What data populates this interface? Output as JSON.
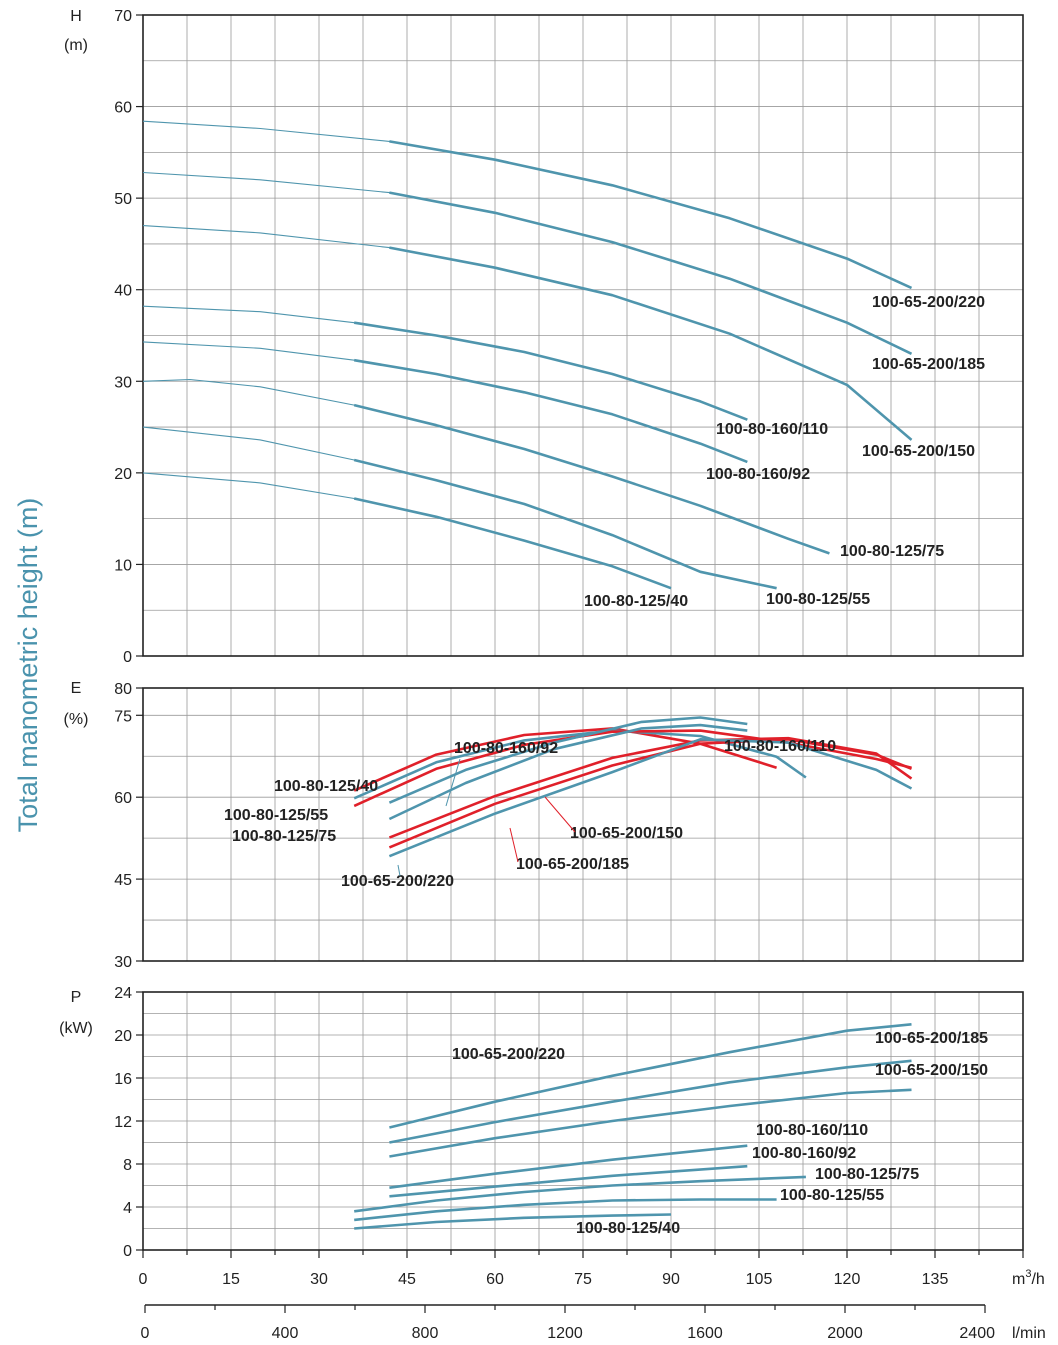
{
  "y_title": "Total manometric height (m)",
  "colors": {
    "blue": "#4f95ad",
    "red": "#e0202a",
    "grid": "#9a9a9a",
    "axis": "#222222"
  },
  "chart_data": [
    {
      "type": "line",
      "panel": "head",
      "ylabel": "H",
      "yunit": "(m)",
      "xlim": [
        0,
        150
      ],
      "ylim": [
        0,
        70
      ],
      "yticks": [
        "0",
        "10",
        "20",
        "30",
        "40",
        "50",
        "60",
        "70"
      ],
      "grid": true,
      "series": [
        {
          "name": "100-65-200/220",
          "color": "blue",
          "bold_from": 42,
          "points": [
            [
              0,
              58.4
            ],
            [
              20,
              57.6
            ],
            [
              42,
              56.2
            ],
            [
              60,
              54.2
            ],
            [
              80,
              51.4
            ],
            [
              100,
              47.8
            ],
            [
              120,
              43.4
            ],
            [
              131,
              40.2
            ]
          ]
        },
        {
          "name": "100-65-200/185",
          "color": "blue",
          "bold_from": 42,
          "points": [
            [
              0,
              52.8
            ],
            [
              20,
              52.0
            ],
            [
              42,
              50.6
            ],
            [
              60,
              48.4
            ],
            [
              80,
              45.2
            ],
            [
              100,
              41.2
            ],
            [
              120,
              36.4
            ],
            [
              131,
              33.0
            ]
          ]
        },
        {
          "name": "100-65-200/150",
          "color": "blue",
          "bold_from": 42,
          "points": [
            [
              0,
              47.0
            ],
            [
              20,
              46.2
            ],
            [
              42,
              44.6
            ],
            [
              60,
              42.4
            ],
            [
              80,
              39.4
            ],
            [
              100,
              35.2
            ],
            [
              120,
              29.6
            ],
            [
              131,
              23.6
            ]
          ]
        },
        {
          "name": "100-80-160/110",
          "color": "blue",
          "bold_from": 36,
          "points": [
            [
              0,
              38.2
            ],
            [
              20,
              37.6
            ],
            [
              36,
              36.4
            ],
            [
              50,
              35.0
            ],
            [
              65,
              33.2
            ],
            [
              80,
              30.8
            ],
            [
              95,
              27.8
            ],
            [
              103,
              25.8
            ]
          ]
        },
        {
          "name": "100-80-160/92",
          "color": "blue",
          "bold_from": 36,
          "points": [
            [
              0,
              34.3
            ],
            [
              20,
              33.6
            ],
            [
              36,
              32.3
            ],
            [
              50,
              30.8
            ],
            [
              65,
              28.8
            ],
            [
              80,
              26.4
            ],
            [
              95,
              23.2
            ],
            [
              103,
              21.2
            ]
          ]
        },
        {
          "name": "100-80-125/75",
          "color": "blue",
          "bold_from": 36,
          "points": [
            [
              0,
              30.0
            ],
            [
              8,
              30.2
            ],
            [
              20,
              29.4
            ],
            [
              36,
              27.4
            ],
            [
              50,
              25.2
            ],
            [
              65,
              22.6
            ],
            [
              80,
              19.6
            ],
            [
              95,
              16.4
            ],
            [
              110,
              12.8
            ],
            [
              117,
              11.2
            ]
          ]
        },
        {
          "name": "100-80-125/55",
          "color": "blue",
          "bold_from": 36,
          "points": [
            [
              0,
              25.0
            ],
            [
              20,
              23.6
            ],
            [
              36,
              21.4
            ],
            [
              50,
              19.2
            ],
            [
              65,
              16.6
            ],
            [
              80,
              13.2
            ],
            [
              95,
              9.2
            ],
            [
              108,
              7.4
            ]
          ]
        },
        {
          "name": "100-80-125/40",
          "color": "blue",
          "bold_from": 36,
          "points": [
            [
              0,
              20.0
            ],
            [
              20,
              18.9
            ],
            [
              36,
              17.2
            ],
            [
              50,
              15.2
            ],
            [
              65,
              12.6
            ],
            [
              80,
              9.8
            ],
            [
              90,
              7.4
            ]
          ]
        }
      ],
      "labels": [
        "100-65-200/220",
        "100-65-200/185",
        "100-65-200/150",
        "100-80-160/110",
        "100-80-160/92",
        "100-80-125/75",
        "100-80-125/55",
        "100-80-125/40"
      ]
    },
    {
      "type": "line",
      "panel": "efficiency",
      "ylabel": "E",
      "yunit": "(%)",
      "xlim": [
        0,
        150
      ],
      "ylim": [
        30,
        80
      ],
      "yticks": [
        "30",
        "45",
        "60",
        "75",
        "80"
      ],
      "grid": true,
      "series": [
        {
          "name": "100-80-125/40",
          "color": "red",
          "points": [
            [
              36,
              61.2
            ],
            [
              50,
              67.8
            ],
            [
              65,
              71.4
            ],
            [
              80,
              72.6
            ],
            [
              95,
              69.8
            ],
            [
              108,
              65.4
            ]
          ]
        },
        {
          "name": "100-80-125/55",
          "color": "blue",
          "points": [
            [
              36,
              59.8
            ],
            [
              50,
              66.4
            ],
            [
              65,
              70.4
            ],
            [
              80,
              72.2
            ],
            [
              95,
              71.2
            ],
            [
              108,
              67.4
            ],
            [
              113,
              63.6
            ]
          ]
        },
        {
          "name": "100-80-125/75",
          "color": "red",
          "points": [
            [
              36,
              58.4
            ],
            [
              50,
              65.2
            ],
            [
              65,
              69.6
            ],
            [
              80,
              72.0
            ],
            [
              95,
              72.2
            ],
            [
              110,
              70.0
            ],
            [
              125,
              67.0
            ],
            [
              131,
              65.4
            ]
          ]
        },
        {
          "name": "100-80-160/92",
          "color": "blue",
          "points": [
            [
              42,
              56.0
            ],
            [
              55,
              62.6
            ],
            [
              70,
              68.8
            ],
            [
              85,
              72.6
            ],
            [
              95,
              73.2
            ],
            [
              103,
              72.2
            ]
          ]
        },
        {
          "name": "100-80-160/110",
          "color": "blue",
          "points": [
            [
              42,
              59.0
            ],
            [
              55,
              65.0
            ],
            [
              70,
              70.0
            ],
            [
              85,
              73.8
            ],
            [
              95,
              74.6
            ],
            [
              103,
              73.4
            ]
          ]
        },
        {
          "name": "100-65-200/150",
          "color": "red",
          "points": [
            [
              42,
              52.6
            ],
            [
              60,
              60.2
            ],
            [
              80,
              67.2
            ],
            [
              95,
              70.4
            ],
            [
              110,
              70.8
            ],
            [
              125,
              68.0
            ],
            [
              131,
              63.4
            ]
          ]
        },
        {
          "name": "100-65-200/185",
          "color": "red",
          "points": [
            [
              42,
              50.8
            ],
            [
              60,
              58.8
            ],
            [
              80,
              65.8
            ],
            [
              95,
              69.8
            ],
            [
              110,
              70.6
            ],
            [
              125,
              67.8
            ],
            [
              131,
              65.2
            ]
          ]
        },
        {
          "name": "100-65-200/220",
          "color": "blue",
          "points": [
            [
              42,
              49.2
            ],
            [
              60,
              57.0
            ],
            [
              80,
              64.6
            ],
            [
              95,
              70.6
            ],
            [
              110,
              70.0
            ],
            [
              125,
              65.0
            ],
            [
              131,
              61.6
            ]
          ]
        }
      ],
      "labels": [
        "100-80-160/92",
        "100-80-160/110",
        "100-80-125/40",
        "100-80-125/55",
        "100-80-125/75",
        "100-65-200/150",
        "100-65-200/185",
        "100-65-200/220"
      ]
    },
    {
      "type": "line",
      "panel": "power",
      "ylabel": "P",
      "yunit": "(kW)",
      "xlim": [
        0,
        150
      ],
      "ylim": [
        0,
        24
      ],
      "yticks": [
        "0",
        "4",
        "8",
        "12",
        "16",
        "20",
        "24"
      ],
      "grid": true,
      "series": [
        {
          "name": "100-65-200/220",
          "color": "blue",
          "points": [
            [
              42,
              11.4
            ],
            [
              60,
              13.8
            ],
            [
              80,
              16.2
            ],
            [
              100,
              18.4
            ],
            [
              120,
              20.4
            ],
            [
              131,
              21.0
            ]
          ]
        },
        {
          "name": "100-65-200/185",
          "color": "blue",
          "points": [
            [
              42,
              10.0
            ],
            [
              60,
              11.9
            ],
            [
              80,
              13.8
            ],
            [
              100,
              15.6
            ],
            [
              120,
              17.0
            ],
            [
              131,
              17.6
            ]
          ]
        },
        {
          "name": "100-65-200/150",
          "color": "blue",
          "points": [
            [
              42,
              8.7
            ],
            [
              60,
              10.4
            ],
            [
              80,
              12.0
            ],
            [
              100,
              13.4
            ],
            [
              120,
              14.6
            ],
            [
              131,
              14.9
            ]
          ]
        },
        {
          "name": "100-80-160/110",
          "color": "blue",
          "points": [
            [
              42,
              5.8
            ],
            [
              60,
              7.1
            ],
            [
              80,
              8.4
            ],
            [
              103,
              9.7
            ]
          ]
        },
        {
          "name": "100-80-160/92",
          "color": "blue",
          "points": [
            [
              42,
              5.0
            ],
            [
              60,
              5.9
            ],
            [
              80,
              6.9
            ],
            [
              103,
              7.8
            ]
          ]
        },
        {
          "name": "100-80-125/75",
          "color": "blue",
          "points": [
            [
              36,
              3.6
            ],
            [
              50,
              4.6
            ],
            [
              65,
              5.4
            ],
            [
              80,
              6.0
            ],
            [
              95,
              6.4
            ],
            [
              113,
              6.8
            ]
          ]
        },
        {
          "name": "100-80-125/55",
          "color": "blue",
          "points": [
            [
              36,
              2.8
            ],
            [
              50,
              3.6
            ],
            [
              65,
              4.2
            ],
            [
              80,
              4.6
            ],
            [
              95,
              4.7
            ],
            [
              108,
              4.7
            ]
          ]
        },
        {
          "name": "100-80-125/40",
          "color": "blue",
          "points": [
            [
              36,
              2.0
            ],
            [
              50,
              2.6
            ],
            [
              65,
              3.0
            ],
            [
              80,
              3.2
            ],
            [
              90,
              3.3
            ]
          ]
        }
      ],
      "labels": [
        "100-65-200/220",
        "100-65-200/185",
        "100-65-200/150",
        "100-80-160/110",
        "100-80-160/92",
        "100-80-125/75",
        "100-80-125/55",
        "100-80-125/40"
      ]
    }
  ],
  "x_axis_m3h": {
    "unit": "m³/h",
    "unit_base": "m",
    "unit_sup": "3",
    "unit_tail": "/h",
    "ticks": [
      "0",
      "15",
      "30",
      "45",
      "60",
      "75",
      "90",
      "105",
      "120",
      "135"
    ]
  },
  "x_axis_lmin": {
    "unit": "l/min",
    "ticks": [
      "0",
      "400",
      "800",
      "1200",
      "1600",
      "2000",
      "2400"
    ]
  }
}
